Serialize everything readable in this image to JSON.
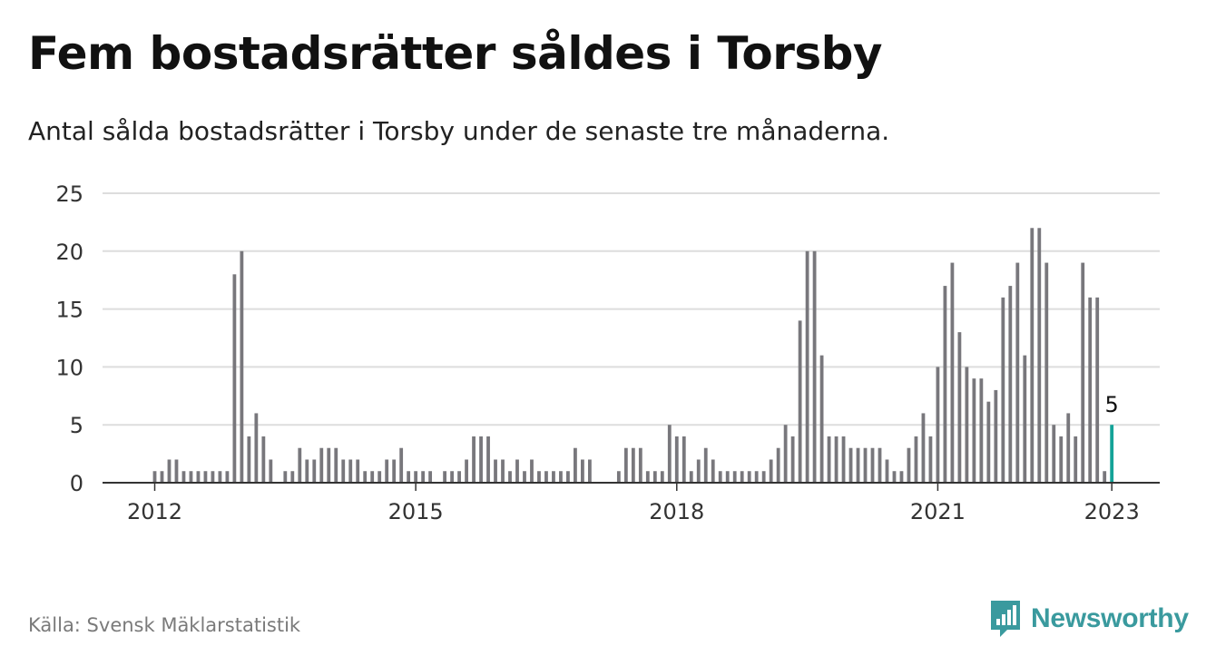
{
  "title": "Fem bostadsrätter såldes i Torsby",
  "subtitle": "Antal sålda bostadsrätter i Torsby under de senaste tre månaderna.",
  "source": "Källa: Svensk Mäklarstatistik",
  "brand": {
    "name": "Newsworthy",
    "icon": "newsworthy-logo-icon",
    "color": "#3a9a9e"
  },
  "colors": {
    "bar": "#78777c",
    "highlight": "#14a398",
    "grid": "#dddddd",
    "axis": "#333333"
  },
  "chart_data": {
    "type": "bar",
    "ylim": [
      0,
      25
    ],
    "yticks": [
      0,
      5,
      10,
      15,
      20,
      25
    ],
    "xticks": [
      "2012",
      "2015",
      "2018",
      "2021",
      "2023"
    ],
    "grid": true,
    "start": "2012-01",
    "x": [
      "2012-01",
      "2012-02",
      "2012-03",
      "2012-04",
      "2012-05",
      "2012-06",
      "2012-07",
      "2012-08",
      "2012-09",
      "2012-10",
      "2012-11",
      "2012-12",
      "2013-01",
      "2013-02",
      "2013-03",
      "2013-04",
      "2013-05",
      "2013-06",
      "2013-07",
      "2013-08",
      "2013-09",
      "2013-10",
      "2013-11",
      "2013-12",
      "2014-01",
      "2014-02",
      "2014-03",
      "2014-04",
      "2014-05",
      "2014-06",
      "2014-07",
      "2014-08",
      "2014-09",
      "2014-10",
      "2014-11",
      "2014-12",
      "2015-01",
      "2015-02",
      "2015-03",
      "2015-04",
      "2015-05",
      "2015-06",
      "2015-07",
      "2015-08",
      "2015-09",
      "2015-10",
      "2015-11",
      "2015-12",
      "2016-01",
      "2016-02",
      "2016-03",
      "2016-04",
      "2016-05",
      "2016-06",
      "2016-07",
      "2016-08",
      "2016-09",
      "2016-10",
      "2016-11",
      "2016-12",
      "2017-01",
      "2017-02",
      "2017-03",
      "2017-04",
      "2017-05",
      "2017-06",
      "2017-07",
      "2017-08",
      "2017-09",
      "2017-10",
      "2017-11",
      "2017-12",
      "2018-01",
      "2018-02",
      "2018-03",
      "2018-04",
      "2018-05",
      "2018-06",
      "2018-07",
      "2018-08",
      "2018-09",
      "2018-10",
      "2018-11",
      "2018-12",
      "2019-01",
      "2019-02",
      "2019-03",
      "2019-04",
      "2019-05",
      "2019-06",
      "2019-07",
      "2019-08",
      "2019-09",
      "2019-10",
      "2019-11",
      "2019-12",
      "2020-01",
      "2020-02",
      "2020-03",
      "2020-04",
      "2020-05",
      "2020-06",
      "2020-07",
      "2020-08",
      "2020-09",
      "2020-10",
      "2020-11",
      "2020-12",
      "2021-01",
      "2021-02",
      "2021-03",
      "2021-04",
      "2021-05",
      "2021-06",
      "2021-07",
      "2021-08",
      "2021-09",
      "2021-10",
      "2021-11",
      "2021-12",
      "2022-01",
      "2022-02",
      "2022-03",
      "2022-04",
      "2022-05",
      "2022-06",
      "2022-07",
      "2022-08",
      "2022-09",
      "2022-10",
      "2022-11",
      "2022-12",
      "2023-01"
    ],
    "values": [
      1,
      1,
      2,
      2,
      1,
      1,
      1,
      1,
      1,
      1,
      1,
      18,
      20,
      4,
      6,
      4,
      2,
      0,
      1,
      1,
      3,
      2,
      2,
      3,
      3,
      3,
      2,
      2,
      2,
      1,
      1,
      1,
      2,
      2,
      3,
      1,
      1,
      1,
      1,
      0,
      1,
      1,
      1,
      2,
      4,
      4,
      4,
      2,
      2,
      1,
      2,
      1,
      2,
      1,
      1,
      1,
      1,
      1,
      3,
      2,
      2,
      0,
      0,
      0,
      1,
      3,
      3,
      3,
      1,
      1,
      1,
      5,
      4,
      4,
      1,
      2,
      3,
      2,
      1,
      1,
      1,
      1,
      1,
      1,
      1,
      2,
      3,
      5,
      4,
      14,
      20,
      20,
      11,
      4,
      4,
      4,
      3,
      3,
      3,
      3,
      3,
      2,
      1,
      1,
      3,
      4,
      6,
      4,
      10,
      17,
      19,
      13,
      10,
      9,
      9,
      7,
      8,
      16,
      17,
      19,
      11,
      22,
      22,
      19,
      5,
      4,
      6,
      4,
      19,
      16,
      16,
      1,
      5
    ],
    "highlight_index": 132,
    "highlight_label": "5"
  }
}
